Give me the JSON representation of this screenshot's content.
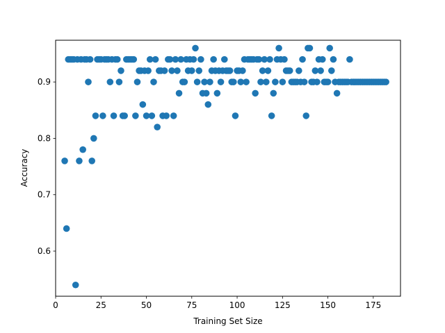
{
  "chart_data": {
    "type": "scatter",
    "xlabel": "Training Set Size",
    "ylabel": "Accuracy",
    "xlim": [
      0,
      190
    ],
    "ylim": [
      0.52,
      0.974
    ],
    "xticks": [
      0,
      25,
      50,
      75,
      100,
      125,
      150,
      175
    ],
    "xtick_labels": [
      "0",
      "25",
      "50",
      "75",
      "100",
      "125",
      "150",
      "175"
    ],
    "yticks": [
      0.6,
      0.7,
      0.8,
      0.9
    ],
    "ytick_labels": [
      "0.6",
      "0.7",
      "0.8",
      "0.9"
    ],
    "grid": false,
    "marker_color": "#1f77b4",
    "points": [
      [
        5,
        0.76
      ],
      [
        6,
        0.64
      ],
      [
        7,
        0.94
      ],
      [
        8,
        0.94
      ],
      [
        9,
        0.94
      ],
      [
        10,
        0.94
      ],
      [
        11,
        0.54
      ],
      [
        12,
        0.94
      ],
      [
        13,
        0.76
      ],
      [
        14,
        0.94
      ],
      [
        15,
        0.78
      ],
      [
        16,
        0.94
      ],
      [
        17,
        0.94
      ],
      [
        18,
        0.9
      ],
      [
        19,
        0.94
      ],
      [
        20,
        0.76
      ],
      [
        21,
        0.8
      ],
      [
        22,
        0.84
      ],
      [
        23,
        0.94
      ],
      [
        24,
        0.94
      ],
      [
        25,
        0.94
      ],
      [
        26,
        0.84
      ],
      [
        27,
        0.94
      ],
      [
        28,
        0.94
      ],
      [
        29,
        0.94
      ],
      [
        30,
        0.9
      ],
      [
        31,
        0.94
      ],
      [
        32,
        0.84
      ],
      [
        33,
        0.94
      ],
      [
        34,
        0.94
      ],
      [
        35,
        0.9
      ],
      [
        36,
        0.92
      ],
      [
        37,
        0.84
      ],
      [
        38,
        0.84
      ],
      [
        39,
        0.94
      ],
      [
        40,
        0.94
      ],
      [
        41,
        0.94
      ],
      [
        42,
        0.94
      ],
      [
        43,
        0.94
      ],
      [
        44,
        0.84
      ],
      [
        45,
        0.9
      ],
      [
        46,
        0.92
      ],
      [
        47,
        0.92
      ],
      [
        48,
        0.86
      ],
      [
        49,
        0.92
      ],
      [
        50,
        0.84
      ],
      [
        51,
        0.92
      ],
      [
        52,
        0.94
      ],
      [
        53,
        0.84
      ],
      [
        54,
        0.9
      ],
      [
        55,
        0.94
      ],
      [
        56,
        0.82
      ],
      [
        57,
        0.92
      ],
      [
        58,
        0.92
      ],
      [
        59,
        0.84
      ],
      [
        60,
        0.92
      ],
      [
        61,
        0.84
      ],
      [
        62,
        0.94
      ],
      [
        63,
        0.94
      ],
      [
        64,
        0.92
      ],
      [
        65,
        0.84
      ],
      [
        66,
        0.94
      ],
      [
        67,
        0.92
      ],
      [
        68,
        0.88
      ],
      [
        69,
        0.94
      ],
      [
        70,
        0.9
      ],
      [
        71,
        0.9
      ],
      [
        72,
        0.94
      ],
      [
        73,
        0.92
      ],
      [
        74,
        0.94
      ],
      [
        75,
        0.92
      ],
      [
        76,
        0.94
      ],
      [
        77,
        0.96
      ],
      [
        78,
        0.9
      ],
      [
        79,
        0.92
      ],
      [
        80,
        0.94
      ],
      [
        81,
        0.88
      ],
      [
        82,
        0.9
      ],
      [
        83,
        0.88
      ],
      [
        84,
        0.86
      ],
      [
        85,
        0.9
      ],
      [
        86,
        0.92
      ],
      [
        87,
        0.94
      ],
      [
        88,
        0.92
      ],
      [
        89,
        0.88
      ],
      [
        90,
        0.92
      ],
      [
        91,
        0.9
      ],
      [
        92,
        0.92
      ],
      [
        93,
        0.94
      ],
      [
        94,
        0.92
      ],
      [
        95,
        0.92
      ],
      [
        96,
        0.92
      ],
      [
        97,
        0.9
      ],
      [
        98,
        0.9
      ],
      [
        99,
        0.84
      ],
      [
        100,
        0.92
      ],
      [
        101,
        0.92
      ],
      [
        102,
        0.9
      ],
      [
        103,
        0.92
      ],
      [
        104,
        0.94
      ],
      [
        105,
        0.9
      ],
      [
        106,
        0.94
      ],
      [
        107,
        0.94
      ],
      [
        108,
        0.94
      ],
      [
        109,
        0.94
      ],
      [
        110,
        0.88
      ],
      [
        111,
        0.94
      ],
      [
        112,
        0.94
      ],
      [
        113,
        0.9
      ],
      [
        114,
        0.92
      ],
      [
        115,
        0.94
      ],
      [
        116,
        0.9
      ],
      [
        117,
        0.92
      ],
      [
        118,
        0.94
      ],
      [
        119,
        0.84
      ],
      [
        120,
        0.88
      ],
      [
        121,
        0.9
      ],
      [
        122,
        0.94
      ],
      [
        123,
        0.96
      ],
      [
        124,
        0.94
      ],
      [
        125,
        0.9
      ],
      [
        126,
        0.94
      ],
      [
        127,
        0.92
      ],
      [
        128,
        0.92
      ],
      [
        129,
        0.92
      ],
      [
        130,
        0.9
      ],
      [
        131,
        0.9
      ],
      [
        132,
        0.9
      ],
      [
        133,
        0.9
      ],
      [
        134,
        0.92
      ],
      [
        135,
        0.9
      ],
      [
        136,
        0.94
      ],
      [
        137,
        0.9
      ],
      [
        138,
        0.84
      ],
      [
        139,
        0.96
      ],
      [
        140,
        0.96
      ],
      [
        141,
        0.9
      ],
      [
        142,
        0.9
      ],
      [
        143,
        0.92
      ],
      [
        144,
        0.9
      ],
      [
        145,
        0.94
      ],
      [
        146,
        0.92
      ],
      [
        147,
        0.94
      ],
      [
        148,
        0.9
      ],
      [
        149,
        0.9
      ],
      [
        150,
        0.9
      ],
      [
        151,
        0.96
      ],
      [
        152,
        0.92
      ],
      [
        153,
        0.94
      ],
      [
        154,
        0.9
      ],
      [
        155,
        0.88
      ],
      [
        156,
        0.9
      ],
      [
        157,
        0.9
      ],
      [
        158,
        0.9
      ],
      [
        159,
        0.9
      ],
      [
        160,
        0.9
      ],
      [
        161,
        0.9
      ],
      [
        162,
        0.94
      ],
      [
        163,
        0.9
      ],
      [
        164,
        0.9
      ],
      [
        165,
        0.9
      ],
      [
        166,
        0.9
      ],
      [
        167,
        0.9
      ],
      [
        168,
        0.9
      ],
      [
        169,
        0.9
      ],
      [
        170,
        0.9
      ],
      [
        171,
        0.9
      ],
      [
        172,
        0.9
      ],
      [
        173,
        0.9
      ],
      [
        174,
        0.9
      ],
      [
        175,
        0.9
      ],
      [
        176,
        0.9
      ],
      [
        177,
        0.9
      ],
      [
        178,
        0.9
      ],
      [
        179,
        0.9
      ],
      [
        180,
        0.9
      ],
      [
        181,
        0.9
      ],
      [
        182,
        0.9
      ]
    ]
  }
}
